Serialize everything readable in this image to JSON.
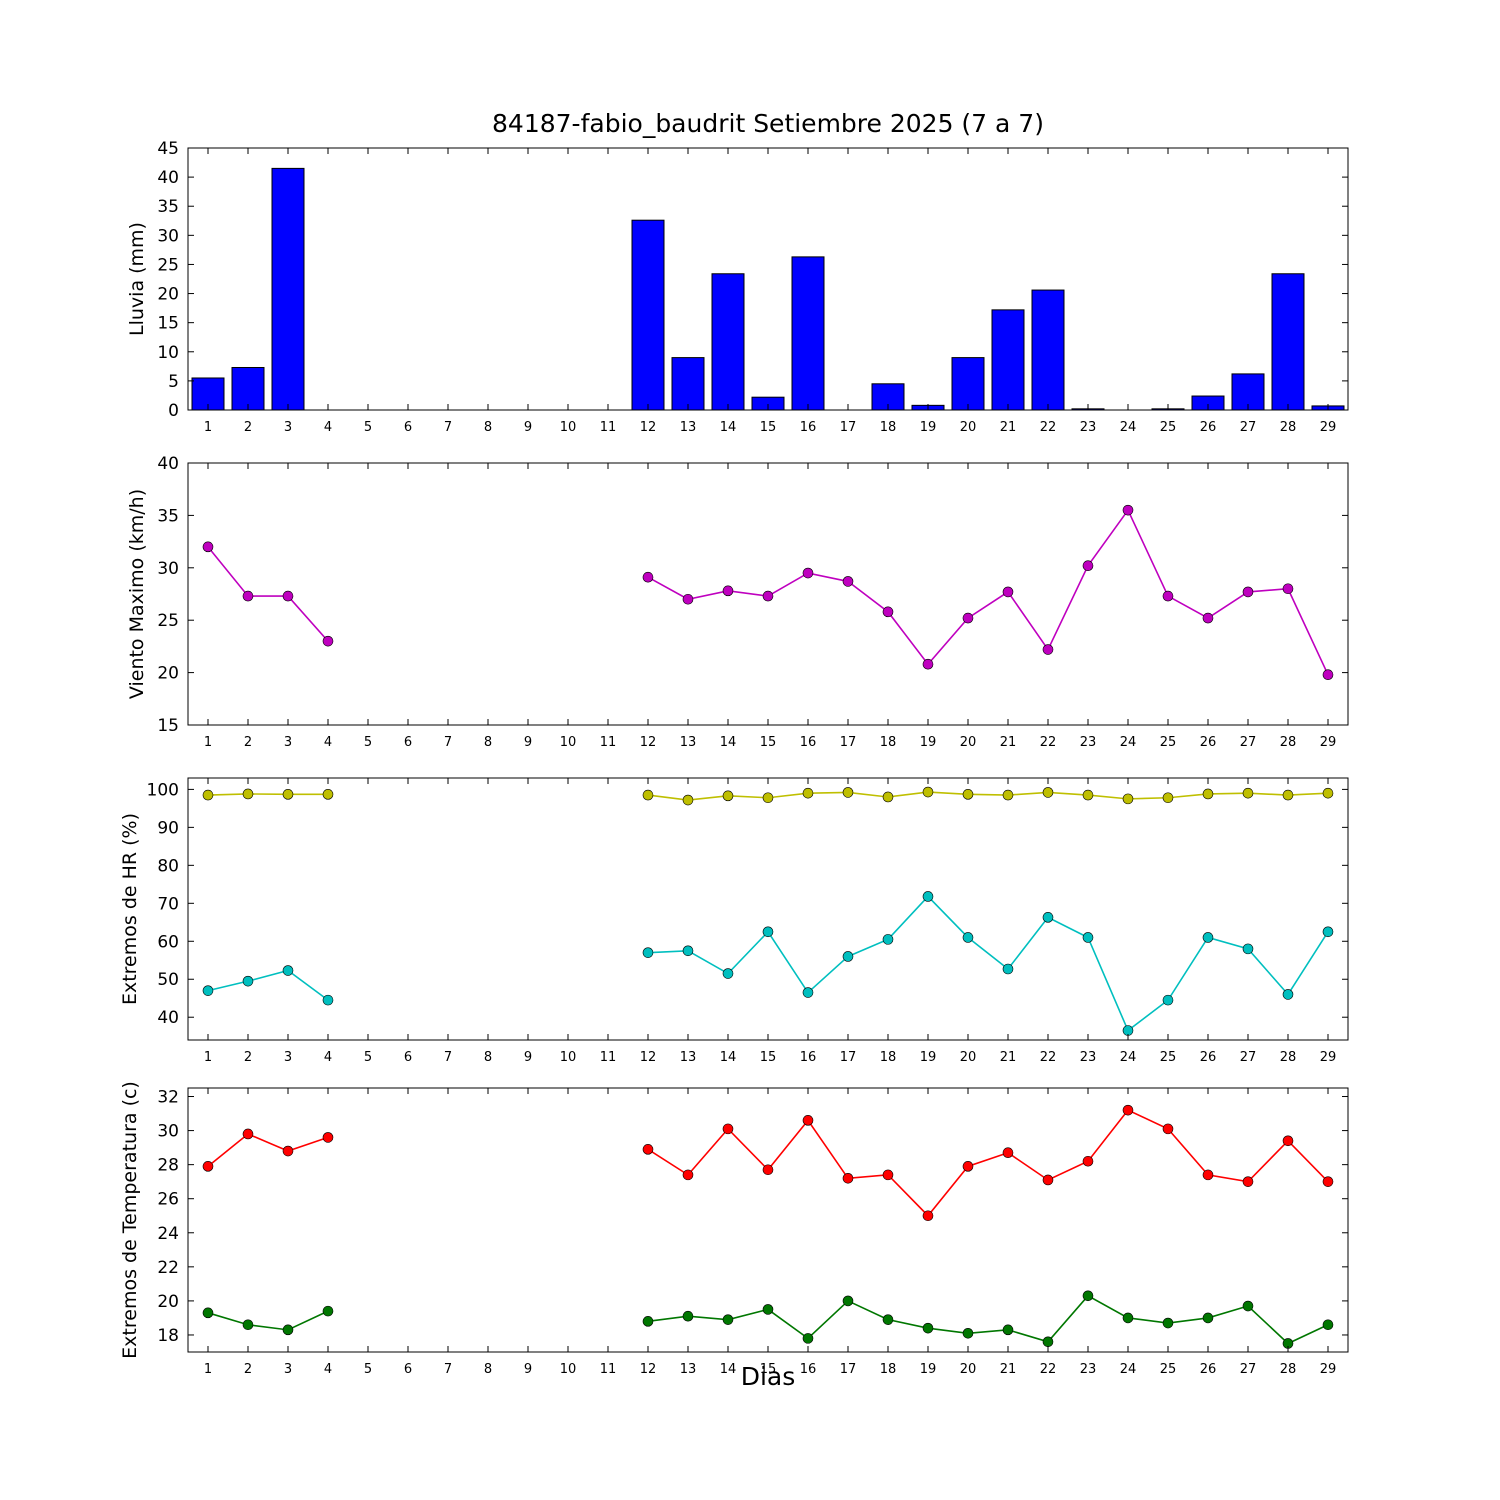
{
  "title": "84187-fabio_baudrit Setiembre 2025  (7 a 7)",
  "xlabel": "Dias",
  "days": [
    1,
    2,
    3,
    4,
    5,
    6,
    7,
    8,
    9,
    10,
    11,
    12,
    13,
    14,
    15,
    16,
    17,
    18,
    19,
    20,
    21,
    22,
    23,
    24,
    25,
    26,
    27,
    28,
    29
  ],
  "chart_data": [
    {
      "id": "lluvia",
      "type": "bar",
      "ylabel": "Lluvia (mm)",
      "ylim": [
        0,
        45
      ],
      "yticks": [
        0,
        5,
        10,
        15,
        20,
        25,
        30,
        35,
        40,
        45
      ],
      "series": [
        {
          "name": "lluvia-mm",
          "color": "#0000ff",
          "values": [
            5.5,
            7.3,
            41.5,
            0,
            0,
            0,
            0,
            0,
            0,
            0,
            0,
            32.6,
            9.0,
            23.4,
            2.2,
            26.3,
            0,
            4.5,
            0.8,
            9.0,
            17.2,
            20.6,
            0.2,
            0,
            0.2,
            2.4,
            6.2,
            23.4,
            0.7
          ]
        }
      ]
    },
    {
      "id": "viento",
      "type": "line",
      "ylabel": "Viento Maximo (km/h)",
      "ylim": [
        15,
        40
      ],
      "yticks": [
        15,
        20,
        25,
        30,
        35,
        40
      ],
      "series": [
        {
          "name": "viento-maximo",
          "color": "#bf00bf",
          "values": [
            32.0,
            27.3,
            27.3,
            23.0,
            null,
            null,
            null,
            null,
            null,
            null,
            null,
            29.1,
            27.0,
            27.8,
            27.3,
            29.5,
            28.7,
            25.8,
            20.8,
            25.2,
            27.7,
            22.2,
            30.2,
            35.5,
            27.3,
            25.2,
            27.7,
            28.0,
            19.8
          ]
        }
      ]
    },
    {
      "id": "hr",
      "type": "line",
      "ylabel": "Extremos de HR (%)",
      "ylim": [
        34,
        103
      ],
      "yticks": [
        40,
        50,
        60,
        70,
        80,
        90,
        100
      ],
      "series": [
        {
          "name": "hr-maxima",
          "color": "#bfbf00",
          "values": [
            98.5,
            98.8,
            98.7,
            98.7,
            null,
            null,
            null,
            null,
            null,
            null,
            null,
            98.5,
            97.2,
            98.3,
            97.8,
            99.0,
            99.2,
            98.0,
            99.3,
            98.7,
            98.5,
            99.2,
            98.5,
            97.5,
            97.8,
            98.8,
            99.0,
            98.5,
            99.0
          ]
        },
        {
          "name": "hr-minima",
          "color": "#00bfbf",
          "values": [
            47.0,
            49.5,
            52.3,
            44.5,
            null,
            null,
            null,
            null,
            null,
            null,
            null,
            57.0,
            57.5,
            51.5,
            62.5,
            46.5,
            56.0,
            60.5,
            71.8,
            61.0,
            52.7,
            66.3,
            61.0,
            36.5,
            44.5,
            61.0,
            58.0,
            46.0,
            62.5
          ]
        }
      ]
    },
    {
      "id": "temperatura",
      "type": "line",
      "ylabel": "Extremos de Temperatura (c)",
      "ylim": [
        17,
        32.5
      ],
      "yticks": [
        18,
        20,
        22,
        24,
        26,
        28,
        30,
        32
      ],
      "series": [
        {
          "name": "temperatura-maxima",
          "color": "#ff0000",
          "values": [
            27.9,
            29.8,
            28.8,
            29.6,
            null,
            null,
            null,
            null,
            null,
            null,
            null,
            28.9,
            27.4,
            30.1,
            27.7,
            30.6,
            27.2,
            27.4,
            25.0,
            27.9,
            28.7,
            27.1,
            28.2,
            31.2,
            30.1,
            27.4,
            27.0,
            29.4,
            27.0
          ]
        },
        {
          "name": "temperatura-minima",
          "color": "#007700",
          "values": [
            19.3,
            18.6,
            18.3,
            19.4,
            null,
            null,
            null,
            null,
            null,
            null,
            null,
            18.8,
            19.1,
            18.9,
            19.5,
            17.8,
            20.0,
            18.9,
            18.4,
            18.1,
            18.3,
            17.6,
            20.3,
            19.0,
            18.7,
            19.0,
            19.7,
            17.5,
            18.6
          ]
        }
      ]
    }
  ]
}
